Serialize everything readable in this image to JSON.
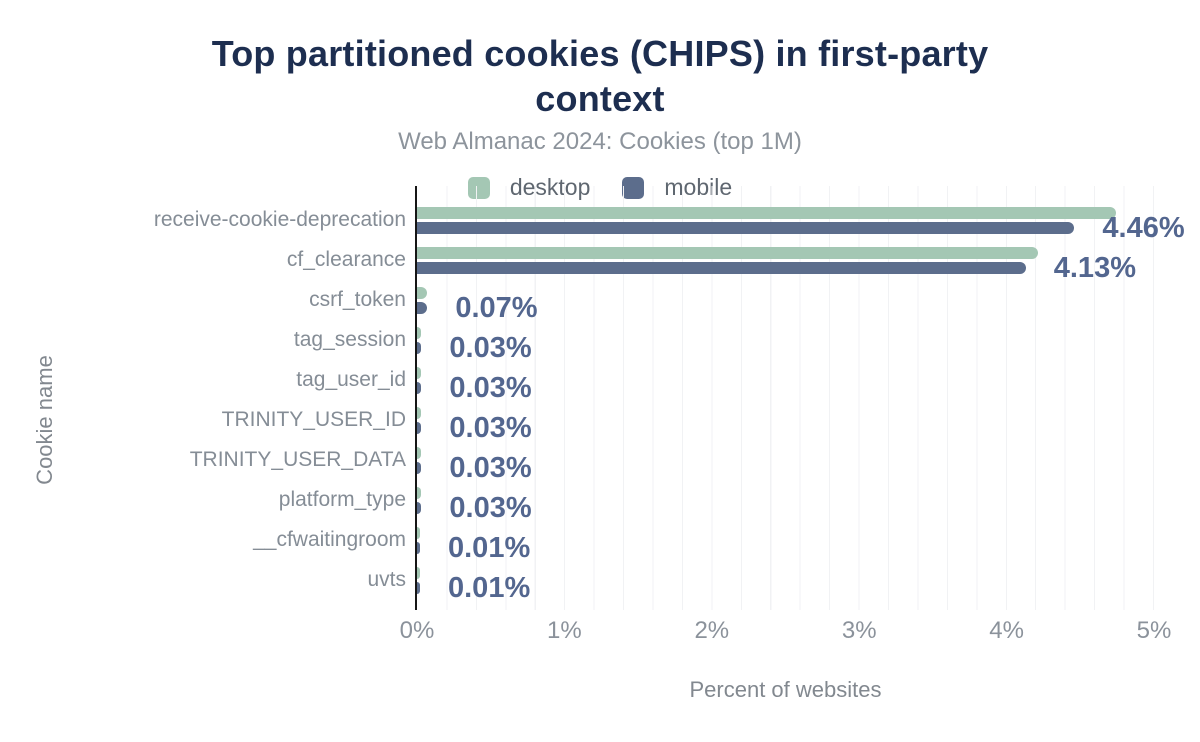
{
  "title": "Top partitioned cookies (CHIPS) in first-party context",
  "title_lines": [
    "Top partitioned cookies (CHIPS) in first-party",
    "context"
  ],
  "subtitle": "Web Almanac 2024: Cookies (top 1M)",
  "legend": {
    "items": [
      {
        "label": "desktop",
        "color": "#a4c7b4"
      },
      {
        "label": "mobile",
        "color": "#5c6d8c"
      }
    ]
  },
  "axes": {
    "x_title": "Percent of websites",
    "y_title": "Cookie name",
    "x_ticks": [
      "0%",
      "1%",
      "2%",
      "3%",
      "4%",
      "5%"
    ]
  },
  "colors": {
    "title": "#1d2e50",
    "subtitle": "#8d949c",
    "desktop_bar": "#a4c7b4",
    "mobile_bar": "#5c6d8c",
    "value_label": "#53668f",
    "category_label": "#858d96",
    "axis_line": "#161616",
    "gridline": "#f1f2f4"
  },
  "chart_data": {
    "type": "bar",
    "orientation": "horizontal",
    "title": "Top partitioned cookies (CHIPS) in first-party context",
    "subtitle": "Web Almanac 2024: Cookies (top 1M)",
    "xlabel": "Percent of websites",
    "ylabel": "Cookie name",
    "xlim": [
      0,
      5
    ],
    "x_tick_step": 1,
    "grid": "minor vertical gridlines every 0.2%",
    "legend_position": "top",
    "categories": [
      "receive-cookie-deprecation",
      "cf_clearance",
      "csrf_token",
      "tag_session",
      "tag_user_id",
      "TRINITY_USER_ID",
      "TRINITY_USER_DATA",
      "platform_type",
      "__cfwaitingroom",
      "uvts"
    ],
    "series": [
      {
        "name": "desktop",
        "color": "#a4c7b4",
        "values": [
          4.74,
          4.21,
          0.07,
          0.03,
          0.03,
          0.03,
          0.03,
          0.03,
          0.01,
          0.01
        ]
      },
      {
        "name": "mobile",
        "color": "#5c6d8c",
        "values": [
          4.46,
          4.13,
          0.07,
          0.03,
          0.03,
          0.03,
          0.03,
          0.03,
          0.01,
          0.01
        ]
      }
    ],
    "value_labels": [
      "4.46%",
      "4.13%",
      "0.07%",
      "0.03%",
      "0.03%",
      "0.03%",
      "0.03%",
      "0.03%",
      "0.01%",
      "0.01%"
    ],
    "value_labels_series": "mobile"
  }
}
